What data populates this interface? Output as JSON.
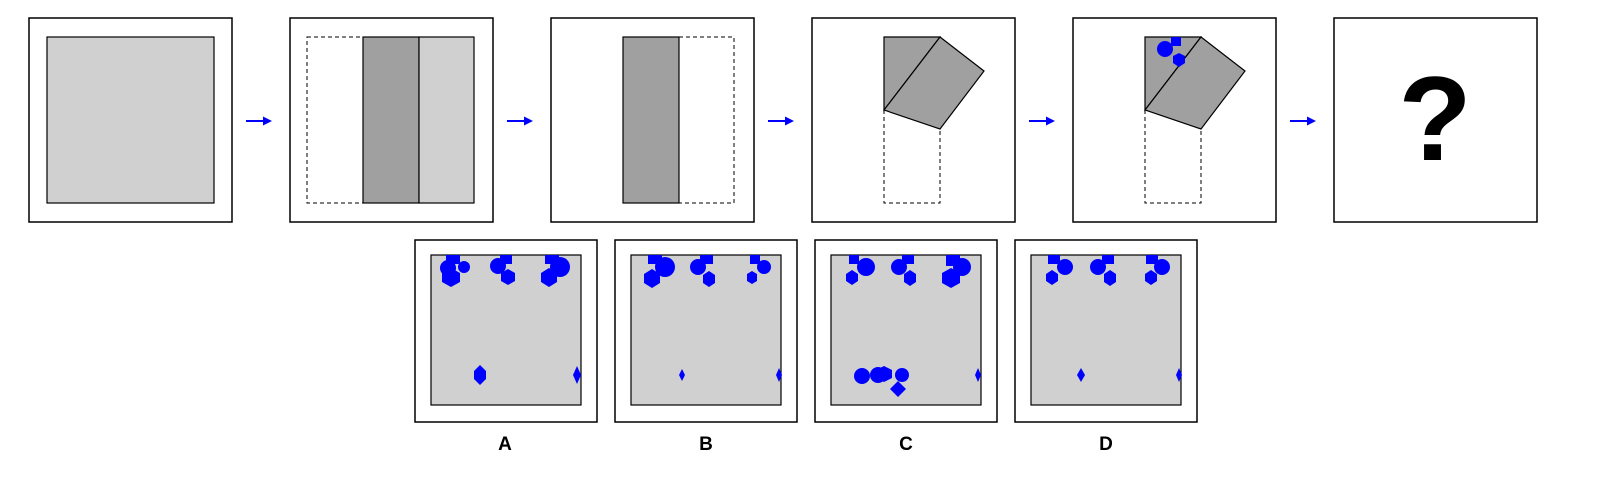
{
  "puzzle": {
    "sequence_panel_count": 6,
    "question_mark": "?",
    "options": [
      {
        "label": "A"
      },
      {
        "label": "B"
      },
      {
        "label": "C"
      },
      {
        "label": "D"
      }
    ]
  },
  "colors": {
    "sheet": "#d0d0d0",
    "folded_layer": "#a0a0a0",
    "hole": "#0000ff",
    "arrow": "#0000ff",
    "border": "#000000",
    "background": "#ffffff"
  },
  "icons": {
    "arrow": "right-arrow-icon",
    "hole": "punched-hole-icon"
  }
}
